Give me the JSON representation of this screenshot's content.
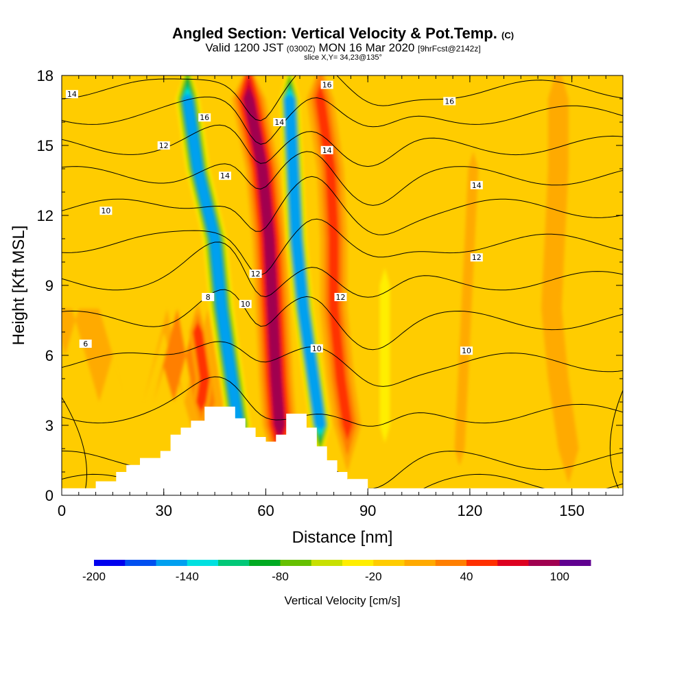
{
  "header": {
    "title": "Angled Section: Vertical Velocity & Pot.Temp.",
    "title_mark": "(C)",
    "valid_a": "Valid 1200 JST",
    "valid_zulu": "(0300Z)",
    "valid_b": "MON 16 Mar 2020",
    "forecast": "[9hrFcst@2142z]",
    "slice": "slice X,Y= 34,23@135°"
  },
  "chart_data": {
    "type": "heatmap",
    "xlabel": "Distance [nm]",
    "ylabel": "Height [Kft MSL]",
    "xlim": [
      0,
      165
    ],
    "ylim": [
      0,
      18
    ],
    "x_ticks": [
      0,
      30,
      60,
      90,
      120,
      150
    ],
    "x_tick_labels": [
      "0",
      "30",
      "60",
      "90",
      "120",
      "150"
    ],
    "y_ticks": [
      0,
      3,
      6,
      9,
      12,
      15,
      18
    ],
    "y_tick_labels": [
      "0",
      "3",
      "6",
      "9",
      "12",
      "15",
      "18"
    ],
    "fill_variable": "Vertical Velocity [cm/s]",
    "colorbar": {
      "label": "Vertical Velocity [cm/s]",
      "min": -200,
      "max": 120,
      "step": 20,
      "tick_values": [
        -200,
        -140,
        -80,
        -20,
        40,
        100
      ],
      "tick_labels": [
        "-200",
        "-140",
        "-80",
        "-20",
        "40",
        "100"
      ],
      "colors": [
        "#0000ee",
        "#0050f0",
        "#00a0f0",
        "#00e0e0",
        "#00c878",
        "#00aa22",
        "#66c000",
        "#c8e000",
        "#ffee00",
        "#ffcc00",
        "#ffaa00",
        "#ff7f00",
        "#ff3000",
        "#dd0020",
        "#a00050",
        "#600090"
      ]
    },
    "background_value": -10,
    "velocity_features": [
      {
        "kind": "updraft_band",
        "x": [
          [
            4,
            15
          ],
          [
            8,
            7
          ],
          [
            8,
            1
          ]
        ],
        "width": 8,
        "value": 20
      },
      {
        "kind": "updraft_band",
        "x": [
          [
            4,
            30
          ],
          [
            8,
            37
          ],
          [
            4,
            42
          ]
        ],
        "width": 12,
        "value": 40
      },
      {
        "kind": "updraft_core",
        "x": [
          [
            7,
            40
          ],
          [
            5,
            42
          ],
          [
            4,
            41
          ]
        ],
        "width": 5,
        "value": 60
      },
      {
        "kind": "downdraft",
        "x": [
          [
            17,
            37
          ],
          [
            14,
            40
          ],
          [
            11,
            45
          ],
          [
            8,
            47
          ],
          [
            5,
            50
          ],
          [
            3,
            52
          ]
        ],
        "width": 7,
        "value": -160
      },
      {
        "kind": "updraft",
        "x": [
          [
            17,
            55
          ],
          [
            14,
            59
          ],
          [
            11,
            61
          ],
          [
            8,
            62
          ],
          [
            5,
            63
          ],
          [
            3,
            64
          ]
        ],
        "width": 10,
        "value": 100
      },
      {
        "kind": "downdraft",
        "x": [
          [
            17,
            67
          ],
          [
            14,
            68
          ],
          [
            11,
            69
          ],
          [
            8,
            71
          ],
          [
            5,
            74
          ],
          [
            3,
            76
          ]
        ],
        "width": 6,
        "value": -150
      },
      {
        "kind": "updraft",
        "x": [
          [
            17,
            76
          ],
          [
            14,
            79
          ],
          [
            11,
            80
          ],
          [
            8,
            80
          ],
          [
            5,
            82
          ],
          [
            3,
            84
          ]
        ],
        "width": 8,
        "value": 50
      },
      {
        "kind": "weak_updraft",
        "x": [
          [
            17,
            146
          ],
          [
            14,
            146
          ],
          [
            11,
            145
          ],
          [
            8,
            144
          ],
          [
            5,
            146
          ],
          [
            2,
            149
          ]
        ],
        "width": 6,
        "value": 0
      },
      {
        "kind": "weak_updraft",
        "x": [
          [
            14,
            121
          ],
          [
            11,
            120
          ],
          [
            8,
            119
          ],
          [
            5,
            118
          ],
          [
            2,
            117
          ]
        ],
        "width": 3,
        "value": 0
      },
      {
        "kind": "weak_downdraft",
        "x": [
          [
            9,
            95
          ],
          [
            6,
            95
          ],
          [
            3,
            95
          ]
        ],
        "width": 3,
        "value": -30
      }
    ],
    "contours": {
      "variable": "Potential Temperature (C)",
      "interval": 2,
      "labels": [
        "6",
        "8",
        "10",
        "12",
        "14",
        "16"
      ],
      "label_positions": [
        {
          "label": "6",
          "x": 7,
          "y": 6.5
        },
        {
          "label": "8",
          "x": 43,
          "y": 8.5
        },
        {
          "label": "10",
          "x": 13,
          "y": 12.2
        },
        {
          "label": "10",
          "x": 54,
          "y": 8.2
        },
        {
          "label": "10",
          "x": 75,
          "y": 6.3
        },
        {
          "label": "10",
          "x": 119,
          "y": 6.2
        },
        {
          "label": "12",
          "x": 30,
          "y": 15.0
        },
        {
          "label": "12",
          "x": 57,
          "y": 9.5
        },
        {
          "label": "12",
          "x": 82,
          "y": 8.5
        },
        {
          "label": "12",
          "x": 122,
          "y": 10.2
        },
        {
          "label": "14",
          "x": 3,
          "y": 17.2
        },
        {
          "label": "14",
          "x": 48,
          "y": 13.7
        },
        {
          "label": "14",
          "x": 64,
          "y": 16.0
        },
        {
          "label": "14",
          "x": 78,
          "y": 14.8
        },
        {
          "label": "14",
          "x": 122,
          "y": 13.3
        },
        {
          "label": "16",
          "x": 42,
          "y": 16.2
        },
        {
          "label": "16",
          "x": 78,
          "y": 17.6
        },
        {
          "label": "16",
          "x": 114,
          "y": 16.9
        }
      ]
    },
    "terrain": [
      [
        10,
        0.6
      ],
      [
        16,
        1.0
      ],
      [
        19,
        1.3
      ],
      [
        23,
        1.6
      ],
      [
        29,
        1.9
      ],
      [
        32,
        2.6
      ],
      [
        35,
        2.9
      ],
      [
        38,
        3.2
      ],
      [
        42,
        3.8
      ],
      [
        51,
        3.3
      ],
      [
        54,
        2.9
      ],
      [
        57,
        2.5
      ],
      [
        60,
        2.3
      ],
      [
        63,
        2.6
      ],
      [
        66,
        3.5
      ],
      [
        72,
        2.9
      ],
      [
        75,
        2.1
      ],
      [
        78,
        1.5
      ],
      [
        81,
        1.0
      ],
      [
        84,
        0.7
      ],
      [
        90,
        0.3
      ]
    ]
  }
}
